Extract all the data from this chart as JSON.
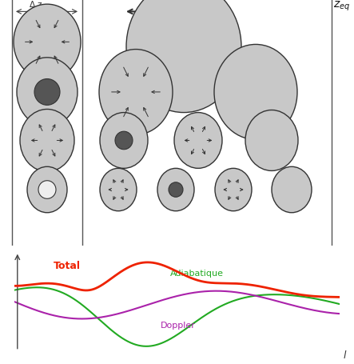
{
  "bg_color": "#ffffff",
  "fig_width": 4.43,
  "fig_height": 4.56,
  "dpi": 100,
  "line_color_total": "#ee2200",
  "line_color_adiab": "#22aa22",
  "line_color_doppler": "#aa22aa",
  "circle_gray_light": "#c8c8c8",
  "circle_gray_darker": "#555555",
  "circle_white": "#eeeeee",
  "arrow_color": "#333333",
  "total_label": "Total",
  "adiab_label": "Adiabatique",
  "doppler_label": "Doppler"
}
